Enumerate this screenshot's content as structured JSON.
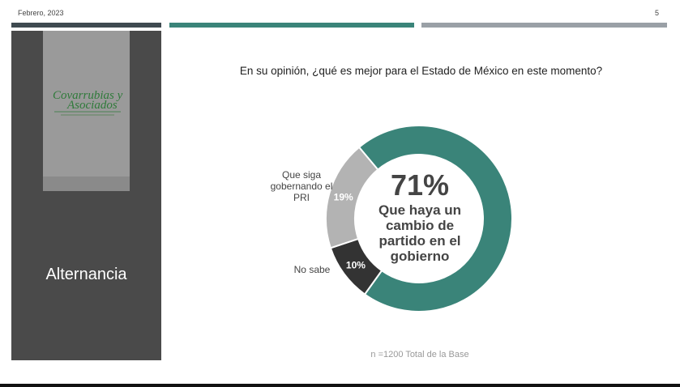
{
  "header": {
    "date": "Febrero, 2023",
    "page_number": "5"
  },
  "colors": {
    "bar_dark": "#3f4a50",
    "bar_teal": "#3a8479",
    "bar_gray": "#9aa0a6",
    "teal": "#3a8479",
    "dark": "#333333",
    "light_gray": "#b3b3b3",
    "panel": "#4a4a4a"
  },
  "sidebar": {
    "logo_text": "Covarrubias y Asociados",
    "section_title": "Alternancia"
  },
  "chart_data": {
    "type": "pie",
    "donut": true,
    "title": "En su opinión, ¿qué es mejor para el Estado de México en este momento?",
    "slices": [
      {
        "label": "Que haya un cambio de partido en el gobierno",
        "value": 71,
        "value_label": "71%",
        "color": "#3a8479"
      },
      {
        "label": "No sabe",
        "value": 10,
        "value_label": "10%",
        "color": "#333333"
      },
      {
        "label": "Que siga gobernando el PRI",
        "value": 19,
        "value_label": "19%",
        "color": "#b3b3b3"
      }
    ],
    "note": "n =1200 Total de la Base"
  }
}
